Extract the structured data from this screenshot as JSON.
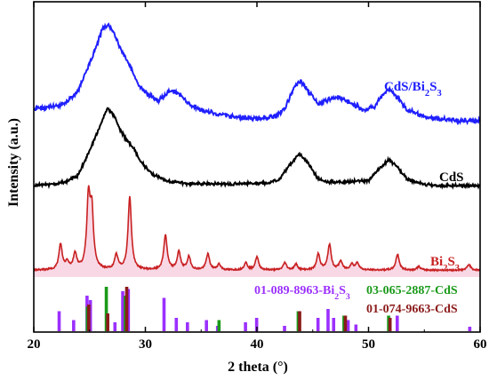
{
  "chart_data": {
    "type": "line",
    "xlabel": "2 theta (°)",
    "ylabel": "Intensity (a.u.)",
    "xlim": [
      20,
      60
    ],
    "xticks": [
      20,
      30,
      40,
      50,
      60
    ],
    "grid": false,
    "series": [
      {
        "name": "CdS/Bi2S3",
        "label_main": "CdS/Bi",
        "label_sub": "2",
        "label_tail": "S",
        "label_sub2": "3",
        "color": "#1f1fff",
        "points": [
          [
            20,
            0.19
          ],
          [
            21,
            0.2
          ],
          [
            22,
            0.21
          ],
          [
            23,
            0.24
          ],
          [
            24,
            0.33
          ],
          [
            24.8,
            0.48
          ],
          [
            25.5,
            0.62
          ],
          [
            26.2,
            0.78
          ],
          [
            26.7,
            0.8
          ],
          [
            27.2,
            0.74
          ],
          [
            27.8,
            0.62
          ],
          [
            28.5,
            0.52
          ],
          [
            29.5,
            0.35
          ],
          [
            30.5,
            0.28
          ],
          [
            31.2,
            0.25
          ],
          [
            32.2,
            0.32
          ],
          [
            33.0,
            0.3
          ],
          [
            34.0,
            0.22
          ],
          [
            35.0,
            0.18
          ],
          [
            36,
            0.16
          ],
          [
            38,
            0.13
          ],
          [
            40,
            0.12
          ],
          [
            41.5,
            0.13
          ],
          [
            42.5,
            0.19
          ],
          [
            43.3,
            0.34
          ],
          [
            43.9,
            0.39
          ],
          [
            44.6,
            0.32
          ],
          [
            45.5,
            0.22
          ],
          [
            46.5,
            0.26
          ],
          [
            47.3,
            0.28
          ],
          [
            48.2,
            0.24
          ],
          [
            49.5,
            0.18
          ],
          [
            50.5,
            0.2
          ],
          [
            51.3,
            0.3
          ],
          [
            51.9,
            0.33
          ],
          [
            52.6,
            0.27
          ],
          [
            53.5,
            0.18
          ],
          [
            55,
            0.13
          ],
          [
            57,
            0.11
          ],
          [
            60,
            0.1
          ]
        ]
      },
      {
        "name": "CdS",
        "label_main": "CdS",
        "color": "#000000",
        "points": [
          [
            20,
            0.01
          ],
          [
            22,
            0.03
          ],
          [
            23,
            0.06
          ],
          [
            24,
            0.13
          ],
          [
            25,
            0.4
          ],
          [
            26,
            0.7
          ],
          [
            26.6,
            0.88
          ],
          [
            27.2,
            0.8
          ],
          [
            27.8,
            0.62
          ],
          [
            28.3,
            0.53
          ],
          [
            29,
            0.42
          ],
          [
            29.5,
            0.3
          ],
          [
            30.5,
            0.15
          ],
          [
            32,
            0.06
          ],
          [
            34,
            0.03
          ],
          [
            38,
            0.03
          ],
          [
            41,
            0.04
          ],
          [
            42,
            0.08
          ],
          [
            43,
            0.25
          ],
          [
            43.8,
            0.37
          ],
          [
            44.5,
            0.28
          ],
          [
            45.5,
            0.08
          ],
          [
            46.5,
            0.05
          ],
          [
            48,
            0.05
          ],
          [
            50,
            0.07
          ],
          [
            51,
            0.2
          ],
          [
            51.8,
            0.3
          ],
          [
            52.6,
            0.22
          ],
          [
            53.5,
            0.08
          ],
          [
            55,
            0.02
          ],
          [
            57,
            0.01
          ],
          [
            60,
            0.01
          ]
        ]
      },
      {
        "name": "Bi2S3",
        "label_main": "Bi",
        "label_sub": "2",
        "label_tail": "S",
        "label_sub2": "3",
        "color": "#c82020",
        "peaks": [
          [
            22.4,
            0.35
          ],
          [
            23.0,
            0.1
          ],
          [
            23.7,
            0.22
          ],
          [
            24.9,
            0.95
          ],
          [
            25.2,
            0.75
          ],
          [
            27.4,
            0.2
          ],
          [
            28.6,
            1.0
          ],
          [
            31.8,
            0.48
          ],
          [
            33.0,
            0.25
          ],
          [
            33.9,
            0.18
          ],
          [
            35.6,
            0.22
          ],
          [
            36.6,
            0.08
          ],
          [
            39.0,
            0.1
          ],
          [
            40.0,
            0.18
          ],
          [
            42.5,
            0.1
          ],
          [
            43.5,
            0.08
          ],
          [
            45.5,
            0.22
          ],
          [
            46.5,
            0.35
          ],
          [
            47.5,
            0.12
          ],
          [
            48.5,
            0.08
          ],
          [
            49.0,
            0.1
          ],
          [
            52.6,
            0.22
          ],
          [
            54.5,
            0.05
          ],
          [
            59.0,
            0.08
          ]
        ]
      }
    ],
    "references": [
      {
        "name": "01-089-8963-Bi2S3",
        "label_main": "01-089-8963-Bi",
        "label_sub": "2",
        "label_tail": "S",
        "label_sub2": "3",
        "color": "#9b30ff",
        "sticks": [
          [
            22.4,
            0.45
          ],
          [
            23.7,
            0.25
          ],
          [
            24.9,
            0.8
          ],
          [
            25.2,
            0.7
          ],
          [
            27.4,
            0.2
          ],
          [
            28.1,
            0.9
          ],
          [
            28.6,
            0.95
          ],
          [
            31.8,
            0.75
          ],
          [
            32.9,
            0.3
          ],
          [
            33.9,
            0.2
          ],
          [
            35.6,
            0.25
          ],
          [
            36.6,
            0.12
          ],
          [
            39.1,
            0.2
          ],
          [
            40.1,
            0.3
          ],
          [
            42.6,
            0.12
          ],
          [
            45.6,
            0.3
          ],
          [
            46.5,
            0.5
          ],
          [
            47.0,
            0.3
          ],
          [
            48.3,
            0.25
          ],
          [
            49.0,
            0.15
          ],
          [
            52.7,
            0.35
          ],
          [
            59.2,
            0.1
          ]
        ]
      },
      {
        "name": "03-065-2887-CdS",
        "label_main": "03-065-2887-CdS",
        "color": "#1a9a1a",
        "sticks": [
          [
            24.8,
            0.55
          ],
          [
            26.5,
            1.0
          ],
          [
            28.2,
            0.8
          ],
          [
            36.6,
            0.25
          ],
          [
            43.7,
            0.45
          ],
          [
            47.8,
            0.35
          ],
          [
            51.8,
            0.35
          ]
        ]
      },
      {
        "name": "01-074-9663-CdS",
        "label_main": "01-074-9663-CdS",
        "color": "#8b1a1a",
        "sticks": [
          [
            24.8,
            0.6
          ],
          [
            26.5,
            0.4
          ],
          [
            28.2,
            1.0
          ],
          [
            43.7,
            0.45
          ],
          [
            47.8,
            0.35
          ],
          [
            51.8,
            0.3
          ]
        ]
      }
    ]
  }
}
